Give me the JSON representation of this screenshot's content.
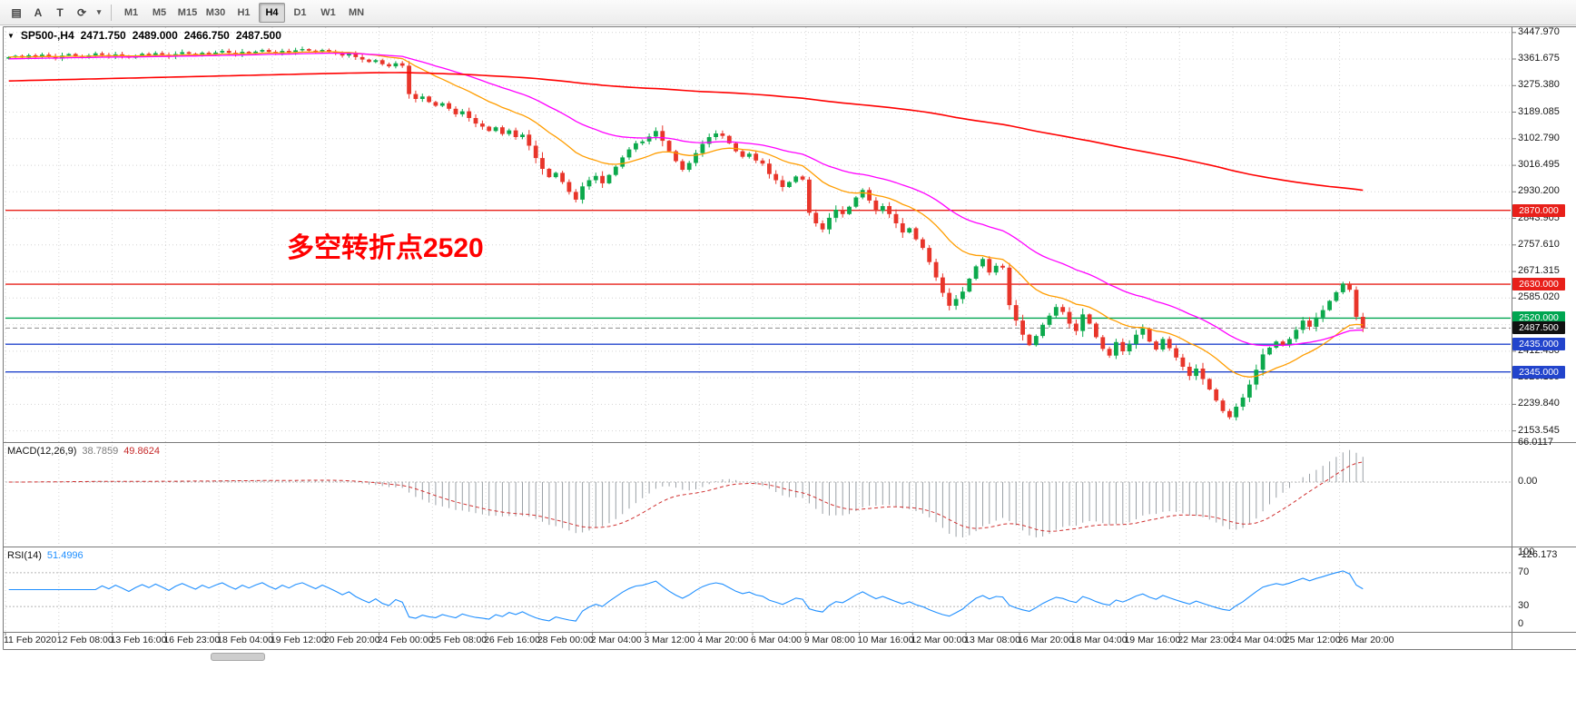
{
  "toolbar": {
    "tools": [
      {
        "name": "chart-grid-icon",
        "glyph": "▤"
      },
      {
        "name": "text-tool-icon",
        "glyph": "A"
      },
      {
        "name": "text-frame-tool-icon",
        "glyph": "T"
      },
      {
        "name": "refresh-tool-icon",
        "glyph": "⟳"
      },
      {
        "name": "chevron-down-icon",
        "glyph": "▾"
      }
    ],
    "timeframes": [
      "M1",
      "M5",
      "M15",
      "M30",
      "H1",
      "H4",
      "D1",
      "W1",
      "MN"
    ],
    "active_timeframe": "H4"
  },
  "chart": {
    "dropdown_glyph": "▼",
    "symbol_title": "SP500-,H4",
    "open": "2471.750",
    "high": "2489.000",
    "low": "2466.750",
    "close": "2487.500",
    "annotation": "多空转折点2520"
  },
  "chart_data": {
    "type": "candlestick",
    "symbol": "SP500-",
    "timeframe": "H4",
    "ylim": [
      2120,
      3465
    ],
    "candle_up_color": "#0ca94c",
    "candle_down_color": "#e8352a",
    "closes": [
      3368,
      3372,
      3366,
      3374,
      3370,
      3376,
      3371,
      3365,
      3373,
      3378,
      3372,
      3368,
      3374,
      3380,
      3375,
      3370,
      3377,
      3372,
      3366,
      3373,
      3379,
      3374,
      3381,
      3376,
      3370,
      3378,
      3384,
      3379,
      3374,
      3382,
      3377,
      3383,
      3388,
      3382,
      3377,
      3385,
      3380,
      3386,
      3391,
      3385,
      3380,
      3388,
      3383,
      3390,
      3394,
      3389,
      3384,
      3391,
      3386,
      3380,
      3373,
      3378,
      3368,
      3360,
      3352,
      3358,
      3345,
      3338,
      3348,
      3340,
      3248,
      3232,
      3240,
      3222,
      3210,
      3218,
      3200,
      3182,
      3192,
      3170,
      3152,
      3142,
      3128,
      3140,
      3118,
      3130,
      3108,
      3116,
      3080,
      3040,
      3005,
      2978,
      2992,
      2962,
      2930,
      2905,
      2948,
      2968,
      2982,
      2958,
      2985,
      3012,
      3042,
      3068,
      3088,
      3094,
      3110,
      3128,
      3096,
      3062,
      3030,
      3002,
      3024,
      3056,
      3086,
      3108,
      3120,
      3112,
      3088,
      3062,
      3044,
      3054,
      3032,
      3022,
      2988,
      2968,
      2946,
      2962,
      2980,
      2970,
      2862,
      2828,
      2808,
      2846,
      2872,
      2858,
      2882,
      2912,
      2936,
      2902,
      2868,
      2884,
      2858,
      2828,
      2798,
      2812,
      2776,
      2748,
      2702,
      2652,
      2602,
      2560,
      2582,
      2606,
      2648,
      2688,
      2712,
      2668,
      2690,
      2684,
      2562,
      2512,
      2466,
      2432,
      2462,
      2498,
      2528,
      2556,
      2540,
      2502,
      2478,
      2532,
      2502,
      2458,
      2420,
      2398,
      2442,
      2412,
      2436,
      2466,
      2486,
      2444,
      2418,
      2452,
      2422,
      2392,
      2362,
      2332,
      2356,
      2322,
      2288,
      2252,
      2218,
      2198,
      2232,
      2262,
      2304,
      2352,
      2402,
      2424,
      2444,
      2432,
      2452,
      2482,
      2512,
      2492,
      2522,
      2546,
      2576,
      2604,
      2632,
      2612,
      2524,
      2487.5
    ],
    "y_ticks": [
      "3447.970",
      "3361.675",
      "3275.380",
      "3189.085",
      "3102.790",
      "3016.495",
      "2930.200",
      "2843.905",
      "2757.610",
      "2671.315",
      "2585.020",
      "2498.725",
      "2412.430",
      "2326.135",
      "2239.840",
      "2153.545"
    ],
    "x_ticks": [
      "11 Feb 2020",
      "12 Feb 08:00",
      "13 Feb 16:00",
      "16 Feb 23:00",
      "18 Feb 04:00",
      "19 Feb 12:00",
      "20 Feb 20:00",
      "24 Feb 00:00",
      "25 Feb 08:00",
      "26 Feb 16:00",
      "28 Feb 00:00",
      "2 Mar 04:00",
      "3 Mar 12:00",
      "4 Mar 20:00",
      "6 Mar 04:00",
      "9 Mar 08:00",
      "10 Mar 16:00",
      "12 Mar 00:00",
      "13 Mar 08:00",
      "16 Mar 20:00",
      "18 Mar 04:00",
      "19 Mar 16:00",
      "22 Mar 23:00",
      "24 Mar 04:00",
      "25 Mar 12:00",
      "26 Mar 20:00"
    ],
    "x_tick_every": 8,
    "levels": [
      {
        "label": "2870.000",
        "value": 2870,
        "color": "#e8201a",
        "style": "solid"
      },
      {
        "label": "2630.000",
        "value": 2630,
        "color": "#e8201a",
        "style": "solid"
      },
      {
        "label": "2520.000",
        "value": 2520,
        "color": "#00a651",
        "style": "solid"
      },
      {
        "label": "2487.500",
        "value": 2487.5,
        "color": "#111111",
        "style": "price"
      },
      {
        "label": "2435.000",
        "value": 2435,
        "color": "#2244cc",
        "style": "solid"
      },
      {
        "label": "2345.000",
        "value": 2345,
        "color": "#2244cc",
        "style": "solid"
      }
    ],
    "moving_averages": [
      {
        "name": "moving-average-fast",
        "period": 18,
        "seed": null,
        "color": "#ff9d00",
        "width": 1.3
      },
      {
        "name": "moving-average-mid",
        "period": 40,
        "seed": 3362,
        "color": "#ff00ff",
        "width": 1.3
      },
      {
        "name": "moving-average-slow",
        "period": 300,
        "seed": 3290,
        "color": "#ff0000",
        "width": 1.6
      }
    ]
  },
  "macd": {
    "label": "MACD(12,26,9)",
    "main_value": "38.7859",
    "signal_value": "49.8624",
    "fast": 12,
    "slow": 26,
    "signal": 9,
    "axis_labels": [
      "66.0117",
      "0.00",
      "-126.173"
    ],
    "histogram_color": "#9aa0a6",
    "signal_color": "#d03030"
  },
  "rsi": {
    "label": "RSI(14)",
    "value": "51.4996",
    "period": 14,
    "levels": [
      70,
      30
    ],
    "axis_labels": [
      "100",
      "70",
      "30",
      "0"
    ],
    "line_color": "#1f8fff"
  }
}
